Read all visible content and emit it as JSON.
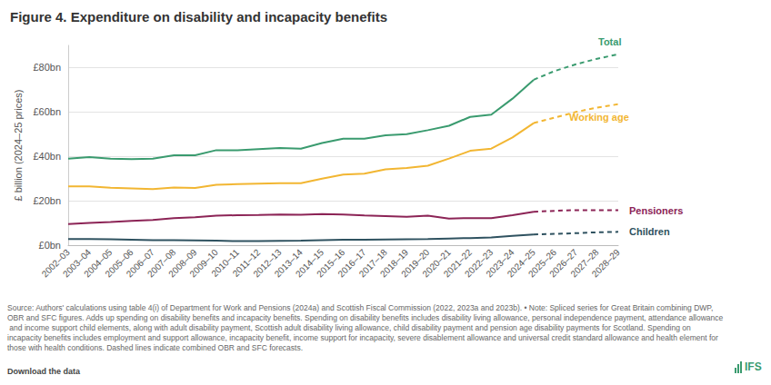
{
  "chart_data": {
    "type": "line",
    "title": "Figure 4. Expenditure on disability and incapacity benefits",
    "y_label": "£ billion (2024–25 prices)",
    "categories": [
      "2002–03",
      "2003–04",
      "2004–05",
      "2005–06",
      "2006–07",
      "2007–08",
      "2008–09",
      "2009–10",
      "2010–11",
      "2011–12",
      "2012–13",
      "2013–14",
      "2014–15",
      "2015–16",
      "2016–17",
      "2017–18",
      "2018–19",
      "2019–20",
      "2020–21",
      "2021–22",
      "2022–23",
      "2023–24",
      "2024–25",
      "2025–26",
      "2026–27",
      "2027–28",
      "2028–29"
    ],
    "series": [
      {
        "name": "Total",
        "color": "#3a9b6f",
        "line_style": "solid",
        "values": [
          39,
          39.7,
          39,
          38.8,
          39,
          40.5,
          40.5,
          42.8,
          42.8,
          43.3,
          43.8,
          43.5,
          46,
          48,
          48,
          49.5,
          50,
          51.8,
          53.8,
          57.8,
          58.8,
          66,
          74.5,
          null,
          null,
          null,
          null
        ]
      },
      {
        "name": "Working age",
        "color": "#f2b632",
        "line_style": "solid",
        "values": [
          26.5,
          26.5,
          25.9,
          25.6,
          25.3,
          26,
          25.8,
          27.2,
          27.5,
          27.7,
          27.9,
          27.9,
          30,
          31.8,
          32.2,
          34.2,
          34.8,
          35.8,
          39,
          42.5,
          43.5,
          48.5,
          55,
          null,
          null,
          null,
          null
        ]
      },
      {
        "name": "Pensioners",
        "color": "#8c2456",
        "line_style": "solid",
        "values": [
          9.5,
          10,
          10.4,
          10.9,
          11.4,
          12.2,
          12.6,
          13.3,
          13.5,
          13.6,
          13.8,
          13.7,
          14,
          13.8,
          13.4,
          13.1,
          12.8,
          13.3,
          12,
          12.2,
          12.2,
          13.5,
          15,
          null,
          null,
          null,
          null
        ]
      },
      {
        "name": "Children",
        "color": "#2f5260",
        "line_style": "solid",
        "values": [
          2.8,
          2.8,
          2.7,
          2.5,
          2.3,
          2.2,
          2.1,
          2,
          1.8,
          1.8,
          1.9,
          2,
          2.3,
          2.5,
          2.5,
          2.6,
          2.7,
          2.8,
          3,
          3.2,
          3.5,
          4.2,
          4.8,
          null,
          null,
          null,
          null
        ]
      },
      {
        "name": "Total",
        "color": "#3a9b6f",
        "line_style": "dashed",
        "values": [
          null,
          null,
          null,
          null,
          null,
          null,
          null,
          null,
          null,
          null,
          null,
          null,
          null,
          null,
          null,
          null,
          null,
          null,
          null,
          null,
          null,
          null,
          74.5,
          78.5,
          81.5,
          84,
          86
        ]
      },
      {
        "name": "Working age",
        "color": "#f2b632",
        "line_style": "dashed",
        "values": [
          null,
          null,
          null,
          null,
          null,
          null,
          null,
          null,
          null,
          null,
          null,
          null,
          null,
          null,
          null,
          null,
          null,
          null,
          null,
          null,
          null,
          null,
          55,
          57.5,
          60,
          62,
          63.5
        ]
      },
      {
        "name": "Pensioners",
        "color": "#8c2456",
        "line_style": "dashed",
        "values": [
          null,
          null,
          null,
          null,
          null,
          null,
          null,
          null,
          null,
          null,
          null,
          null,
          null,
          null,
          null,
          null,
          null,
          null,
          null,
          null,
          null,
          null,
          15,
          15.5,
          15.8,
          15.8,
          15.7
        ]
      },
      {
        "name": "Children",
        "color": "#2f5260",
        "line_style": "dashed",
        "values": [
          null,
          null,
          null,
          null,
          null,
          null,
          null,
          null,
          null,
          null,
          null,
          null,
          null,
          null,
          null,
          null,
          null,
          null,
          null,
          null,
          null,
          null,
          4.8,
          5.1,
          5.4,
          5.8,
          6
        ]
      }
    ],
    "ylim": [
      0,
      90
    ],
    "yticks": [
      {
        "value": 0,
        "label": "£0bn"
      },
      {
        "value": 20,
        "label": "£20bn"
      },
      {
        "value": 40,
        "label": "£40bn"
      },
      {
        "value": 60,
        "label": "£60bn"
      },
      {
        "value": 80,
        "label": "£80bn"
      }
    ],
    "grid": true,
    "note": "Source: Authors' calculations using table 4(i) of Department for Work and Pensions (2024a) and Scottish Fiscal Commission (2022, 2023a and 2023b). • Note: Spliced series for Great Britain combining DWP, OBR and SFC figures. Adds up spending on disability benefits and incapacity benefits. Spending on disability benefits includes disability living allowance, personal independence payment, attendance allowance and income support child elements, along with adult disability payment, Scottish adult disability living allowance, child disability payment and pension age disability payments for Scotland. Spending on incapacity benefits includes employment and support allowance, incapacity benefit, income support for incapacity, severe disablement allowance and universal credit standard allowance and health element for those with health conditions. Dashed lines indicate combined OBR and SFC forecasts.",
    "link": "Download the data",
    "logo": "IFS"
  }
}
